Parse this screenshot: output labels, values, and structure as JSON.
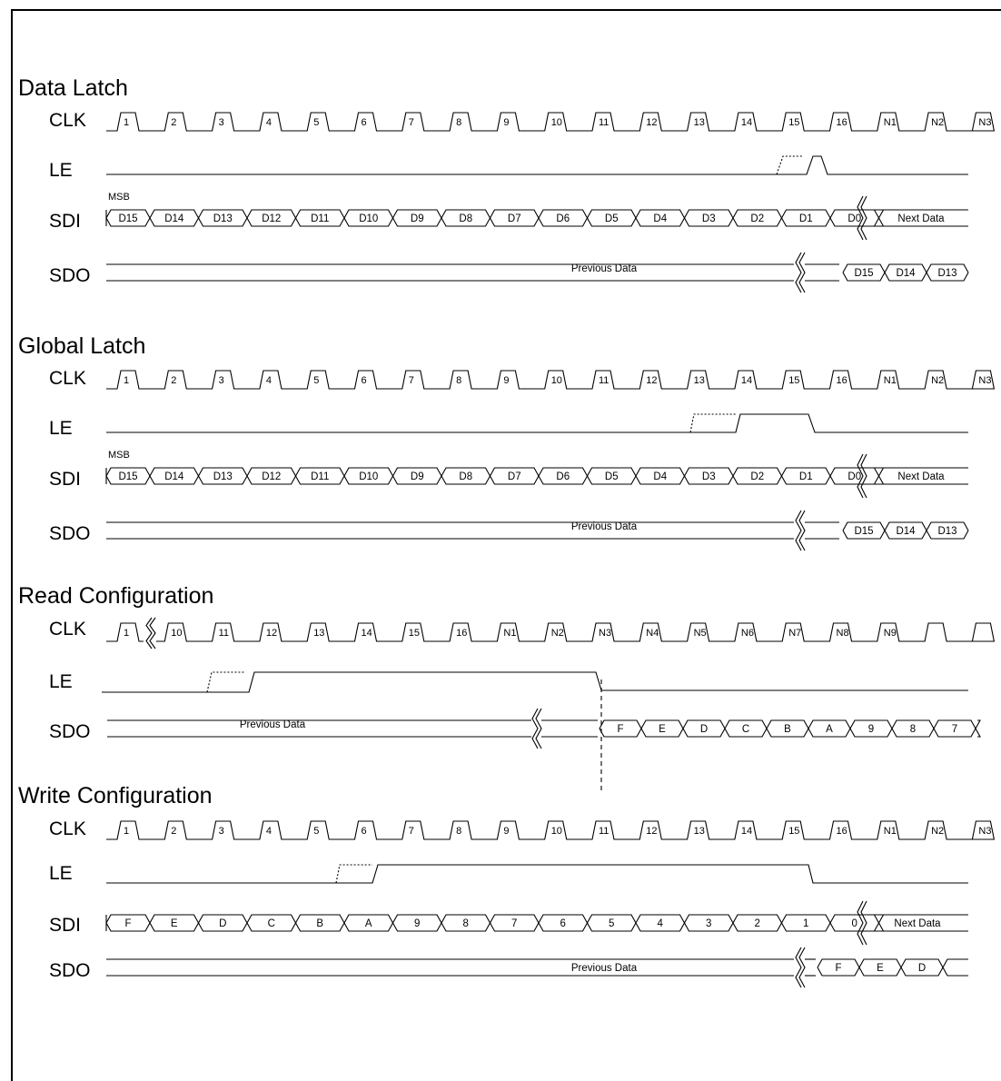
{
  "caption": "",
  "sections": [
    {
      "id": "data-latch",
      "title": "Data Latch",
      "clk_labels": [
        "1",
        "2",
        "3",
        "4",
        "5",
        "6",
        "7",
        "8",
        "9",
        "10",
        "11",
        "12",
        "13",
        "14",
        "15",
        "16",
        "N1",
        "N2",
        "N3"
      ],
      "le_label": "LE",
      "clk_label": "CLK",
      "sdi": {
        "label": "SDI",
        "msb_label": "MSB",
        "bits": [
          "D15",
          "D14",
          "D13",
          "D12",
          "D11",
          "D10",
          "D9",
          "D8",
          "D7",
          "D6",
          "D5",
          "D4",
          "D3",
          "D2",
          "D1",
          "D0"
        ],
        "next_label": "Next Data"
      },
      "sdo": {
        "label": "SDO",
        "previous_label": "Previous Data",
        "bits": [
          "D15",
          "D14",
          "D13"
        ]
      }
    },
    {
      "id": "global-latch",
      "title": "Global Latch",
      "clk_labels": [
        "1",
        "2",
        "3",
        "4",
        "5",
        "6",
        "7",
        "8",
        "9",
        "10",
        "11",
        "12",
        "13",
        "14",
        "15",
        "16",
        "N1",
        "N2",
        "N3"
      ],
      "le_label": "LE",
      "clk_label": "CLK",
      "sdi": {
        "label": "SDI",
        "msb_label": "MSB",
        "bits": [
          "D15",
          "D14",
          "D13",
          "D12",
          "D11",
          "D10",
          "D9",
          "D8",
          "D7",
          "D6",
          "D5",
          "D4",
          "D3",
          "D2",
          "D1",
          "D0"
        ],
        "next_label": "Next Data"
      },
      "sdo": {
        "label": "SDO",
        "previous_label": "Previous Data",
        "bits": [
          "D15",
          "D14",
          "D13"
        ]
      }
    },
    {
      "id": "read-configuration",
      "title": "Read Configuration",
      "clk_labels": [
        "1",
        "10",
        "11",
        "12",
        "13",
        "14",
        "15",
        "16",
        "N1",
        "N2",
        "N3",
        "N4",
        "N5",
        "N6",
        "N7",
        "N8",
        "N9",
        "",
        ""
      ],
      "le_label": "LE",
      "clk_label": "CLK",
      "sdo": {
        "label": "SDO",
        "previous_label": "Previous Data",
        "bits": [
          "F",
          "E",
          "D",
          "C",
          "B",
          "A",
          "9",
          "8",
          "7"
        ]
      }
    },
    {
      "id": "write-configuration",
      "title": "Write Configuration",
      "clk_labels": [
        "1",
        "2",
        "3",
        "4",
        "5",
        "6",
        "7",
        "8",
        "9",
        "10",
        "11",
        "12",
        "13",
        "14",
        "15",
        "16",
        "N1",
        "N2",
        "N3"
      ],
      "le_label": "LE",
      "clk_label": "CLK",
      "sdi": {
        "label": "SDI",
        "bits": [
          "F",
          "E",
          "D",
          "C",
          "B",
          "A",
          "9",
          "8",
          "7",
          "6",
          "5",
          "4",
          "3",
          "2",
          "1",
          "0"
        ],
        "next_label": "Next Data"
      },
      "sdo": {
        "label": "SDO",
        "previous_label": "Previous Data",
        "bits": [
          "F",
          "E",
          "D"
        ]
      }
    }
  ],
  "colors": {
    "stroke": "#000000",
    "background": "#ffffff"
  }
}
